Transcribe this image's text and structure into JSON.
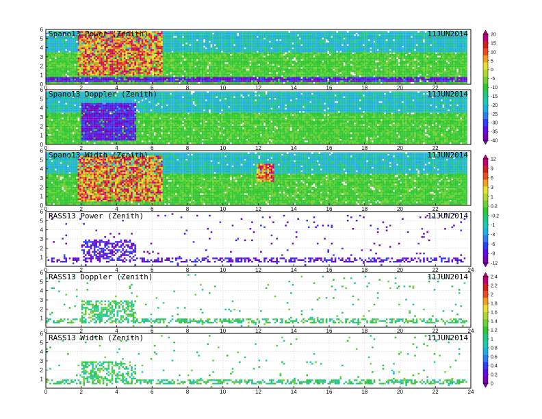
{
  "chart_data": [
    {
      "type": "heatmap",
      "title": "Spano13 Power (Zenith)",
      "date": "11JUN2014",
      "xlim": [
        0,
        24
      ],
      "ylim": [
        0,
        6
      ],
      "xticks": [
        "0",
        "2",
        "4",
        "6",
        "8",
        "10",
        "12",
        "14",
        "16",
        "18",
        "20",
        "22"
      ],
      "yticks": [
        "0",
        "1",
        "2",
        "3",
        "4",
        "5",
        "6"
      ],
      "colorbar": [
        "20",
        "15",
        "10",
        "5",
        "0",
        "-5",
        "-10",
        "-15",
        "-20",
        "-25",
        "-30",
        "-35",
        "-40"
      ],
      "fill": "dense",
      "features": [
        {
          "x": [
            1.8,
            6.5
          ],
          "y": [
            1.0,
            5.8
          ],
          "level": "high"
        },
        {
          "x": [
            0,
            24
          ],
          "y": [
            0.3,
            0.7
          ],
          "level": "low"
        }
      ]
    },
    {
      "type": "heatmap",
      "title": "Spano13 Doppler (Zenith)",
      "date": "11JUN2014",
      "xlim": [
        0,
        24
      ],
      "ylim": [
        0,
        6
      ],
      "xticks": [
        "0",
        "2",
        "4",
        "6",
        "8",
        "10",
        "12",
        "14",
        "16",
        "18",
        "20",
        "22"
      ],
      "yticks": [
        "0",
        "1",
        "2",
        "3",
        "4",
        "5",
        "6"
      ],
      "fill": "dense",
      "features": [
        {
          "x": [
            2.0,
            5.0
          ],
          "y": [
            0.5,
            4.5
          ],
          "level": "low"
        }
      ]
    },
    {
      "type": "heatmap",
      "title": "Spano13 Width (Zenith)",
      "date": "11JUN2014",
      "xlim": [
        0,
        24
      ],
      "ylim": [
        0,
        6
      ],
      "xticks": [
        "0",
        "2",
        "4",
        "6",
        "8",
        "10",
        "12",
        "14",
        "16",
        "18",
        "20",
        "22"
      ],
      "yticks": [
        "0",
        "1",
        "2",
        "3",
        "4",
        "5",
        "6"
      ],
      "colorbar": [
        "12",
        "9",
        "6",
        "3",
        "1",
        "0.2",
        "-0.2",
        "-1",
        "-3",
        "-6",
        "-9",
        "-12"
      ],
      "fill": "dense",
      "features": [
        {
          "x": [
            1.8,
            6.5
          ],
          "y": [
            0.5,
            5.5
          ],
          "level": "high"
        },
        {
          "x": [
            11.8,
            12.8
          ],
          "y": [
            2.5,
            4.5
          ],
          "level": "high"
        }
      ]
    },
    {
      "type": "heatmap",
      "title": "RASS13 Power (Zenith)",
      "date": "11JUN2014",
      "xlim": [
        0,
        24
      ],
      "ylim": [
        0,
        6
      ],
      "xticks": [
        "0",
        "2",
        "4",
        "6",
        "8",
        "10",
        "12",
        "14",
        "16",
        "18",
        "20",
        "22",
        "24"
      ],
      "yticks": [
        "1",
        "2",
        "3",
        "4",
        "5",
        "6"
      ],
      "fill": "sparse",
      "features": [
        {
          "x": [
            0,
            24
          ],
          "y": [
            0.5,
            1.0
          ],
          "level": "low"
        },
        {
          "x": [
            2.0,
            5.0
          ],
          "y": [
            1.0,
            3.0
          ],
          "level": "low"
        }
      ]
    },
    {
      "type": "heatmap",
      "title": "RASS13 Doppler (Zenith)",
      "date": "11JUN2014",
      "xlim": [
        0,
        24
      ],
      "ylim": [
        0,
        6
      ],
      "xticks": [
        "0",
        "2",
        "4",
        "6",
        "8",
        "10",
        "12",
        "14",
        "16",
        "18",
        "20",
        "22",
        "24"
      ],
      "yticks": [
        "1",
        "2",
        "3",
        "4",
        "5",
        "6"
      ],
      "colorbar": [
        "2.4",
        "2.2",
        "2",
        "1.8",
        "1.6",
        "1.4",
        "1.2",
        "1",
        "0.8",
        "0.6",
        "0.4",
        "0.2",
        "0"
      ],
      "fill": "sparse",
      "features": [
        {
          "x": [
            0,
            24
          ],
          "y": [
            0.5,
            1.0
          ],
          "level": "mid"
        },
        {
          "x": [
            2.0,
            5.0
          ],
          "y": [
            1.0,
            3.0
          ],
          "level": "mid"
        }
      ]
    },
    {
      "type": "heatmap",
      "title": "RASS13 Width (Zenith)",
      "date": "11JUN2014",
      "xlim": [
        0,
        24
      ],
      "ylim": [
        0,
        6
      ],
      "xticks": [
        "0",
        "2",
        "4",
        "6",
        "8",
        "10",
        "12",
        "14",
        "16",
        "18",
        "20",
        "22",
        "24"
      ],
      "yticks": [
        "1",
        "2",
        "3",
        "4",
        "5",
        "6"
      ],
      "fill": "sparse",
      "features": [
        {
          "x": [
            0,
            24
          ],
          "y": [
            0.5,
            1.0
          ],
          "level": "mid"
        },
        {
          "x": [
            2.0,
            5.0
          ],
          "y": [
            1.0,
            3.0
          ],
          "level": "mid"
        }
      ]
    }
  ],
  "palette": [
    "#7a00b4",
    "#5a10e0",
    "#3040f0",
    "#2a80f0",
    "#20b0e0",
    "#20c8b0",
    "#20c880",
    "#30c830",
    "#70d030",
    "#b0d830",
    "#e8e030",
    "#f0a020",
    "#e85020",
    "#d02020",
    "#c0007a"
  ]
}
